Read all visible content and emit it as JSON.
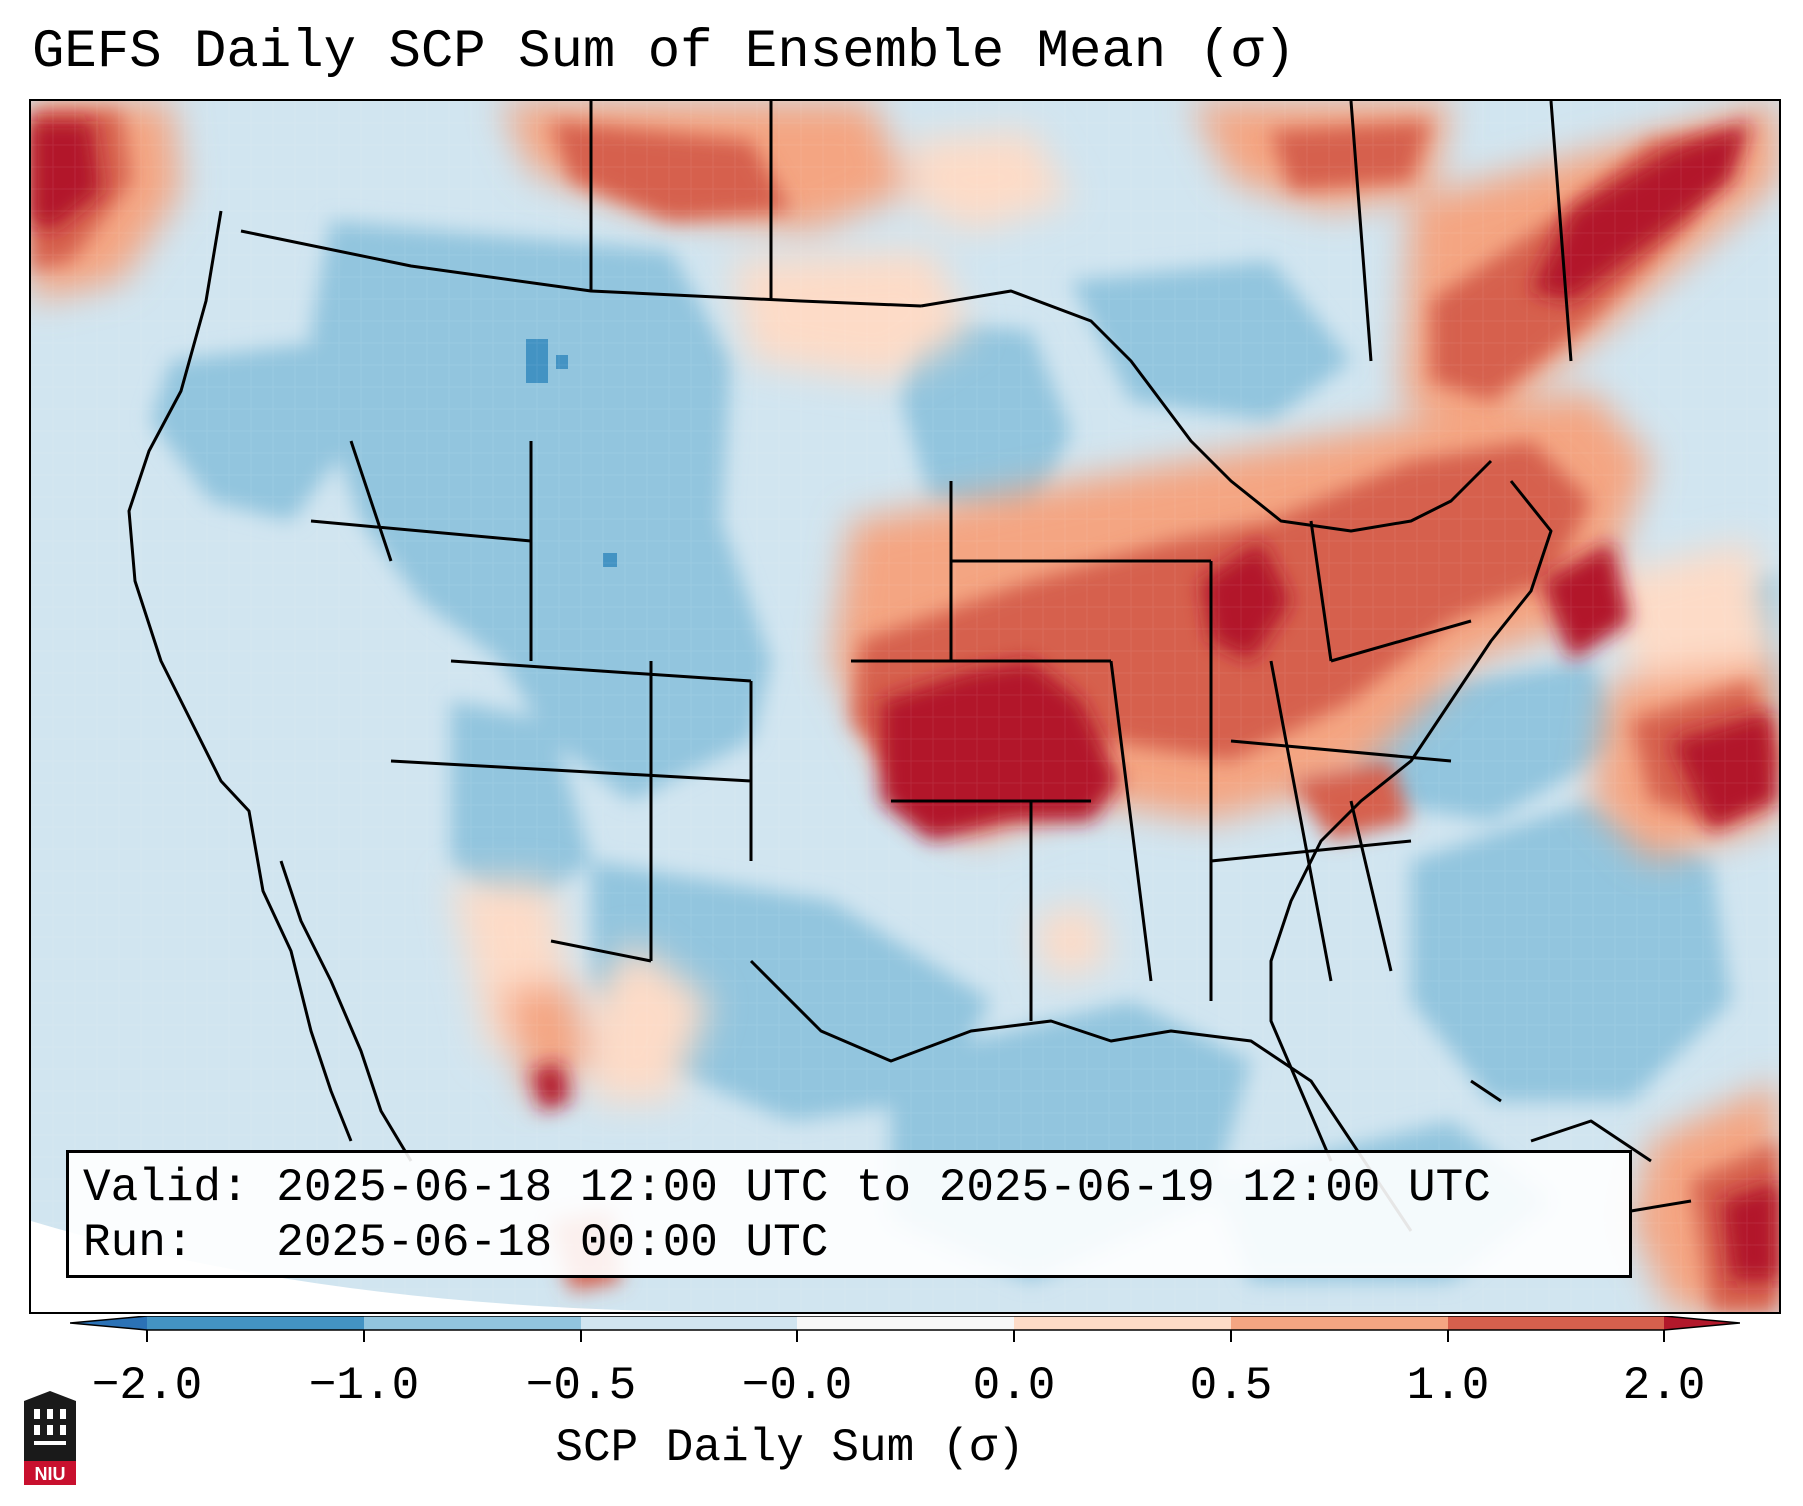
{
  "title": "GEFS Daily SCP Sum of Ensemble Mean (σ)",
  "info": {
    "valid": "Valid: 2025-06-18 12:00 UTC to 2025-06-19 12:00 UTC",
    "run": "Run:   2025-06-18 00:00 UTC"
  },
  "colorbar": {
    "label": "SCP Daily Sum (σ)",
    "ticks": [
      "−2.0",
      "−1.0",
      "−0.5",
      "−0.0",
      "0.0",
      "0.5",
      "1.0",
      "2.0"
    ],
    "bins": [
      {
        "range": "< -2.0",
        "color": "#2b72b6"
      },
      {
        "range": "-2.0 to -1.0",
        "color": "#4393c3"
      },
      {
        "range": "-1.0 to -0.5",
        "color": "#92c5de"
      },
      {
        "range": "-0.5 to -0.0",
        "color": "#d1e5f0"
      },
      {
        "range": "-0.0 to 0.0",
        "color": "#f7f7f7"
      },
      {
        "range": "0.0 to 0.5",
        "color": "#fddbc7"
      },
      {
        "range": "0.5 to 1.0",
        "color": "#f4a582"
      },
      {
        "range": "1.0 to 2.0",
        "color": "#d6604d"
      },
      {
        "range": "> 2.0",
        "color": "#b2182b"
      }
    ]
  },
  "map": {
    "projection": "conic",
    "region": "CONUS",
    "highlights": [
      {
        "area": "Kansas/Oklahoma/Missouri/Arkansas",
        "level": "> 2.0"
      },
      {
        "area": "Ohio Valley to Mid-Atlantic",
        "level": "1.0 to 2.0"
      },
      {
        "area": "St. Lawrence Valley",
        "level": "1.0 to 2.0"
      },
      {
        "area": "Northern High Plains / Canada border",
        "level": "0.5 to 2.0"
      },
      {
        "area": "Western Atlantic",
        "level": "> 2.0"
      },
      {
        "area": "Interior West",
        "level": "-1.0 to -0.5"
      }
    ]
  },
  "logo": {
    "text": "NIU",
    "color": "#c8102e"
  }
}
